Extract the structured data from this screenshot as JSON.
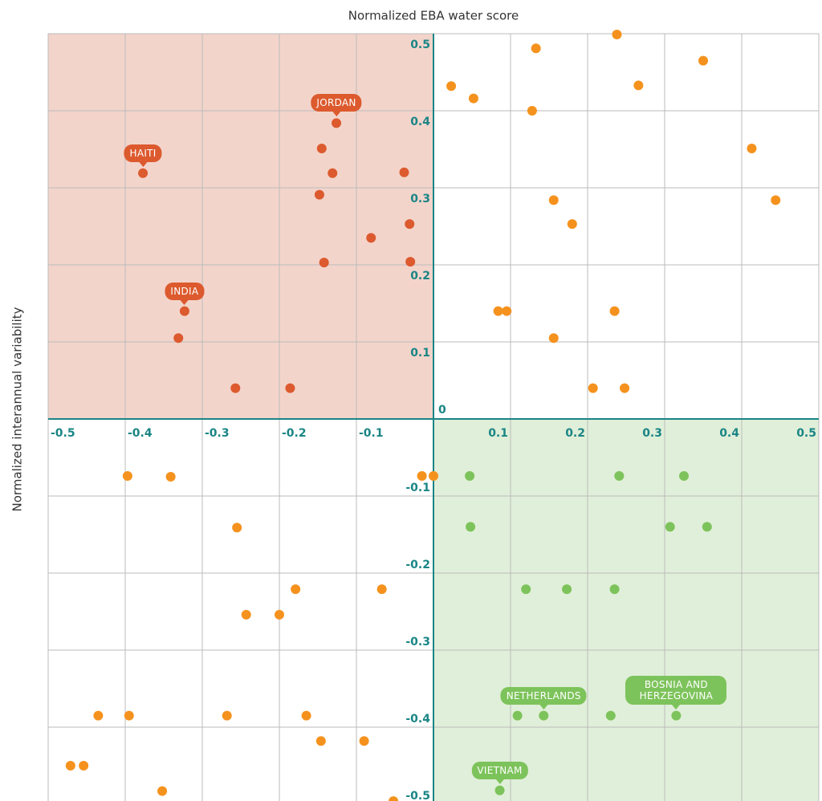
{
  "chart_data": {
    "type": "scatter",
    "title": "Normalized EBA water score",
    "ylabel": "Normalized interannual variability",
    "xlim": [
      -0.5,
      0.5
    ],
    "ylim": [
      -0.5,
      0.5
    ],
    "xticks": [
      -0.5,
      -0.4,
      -0.3,
      -0.2,
      -0.1,
      0,
      0.1,
      0.2,
      0.3,
      0.4,
      0.5
    ],
    "yticks": [
      -0.5,
      -0.4,
      -0.3,
      -0.2,
      -0.1,
      0.1,
      0.2,
      0.3,
      0.4,
      0.5
    ],
    "grid": true,
    "series": [
      {
        "color": "#dc5a2e",
        "x": [
          -0.377,
          -0.323,
          -0.331,
          -0.257,
          -0.186,
          -0.126,
          -0.145,
          -0.131,
          -0.148,
          -0.038,
          -0.031,
          -0.081,
          -0.142,
          -0.03
        ],
        "values": [
          0.319,
          0.14,
          0.105,
          0.04,
          0.04,
          0.384,
          0.351,
          0.319,
          0.291,
          0.32,
          0.253,
          0.235,
          0.203,
          0.204
        ],
        "point_labels": [
          "HAITI",
          "INDIA",
          null,
          null,
          null,
          "JORDAN",
          null,
          null,
          null,
          null,
          null,
          null,
          null,
          null
        ]
      },
      {
        "color": "#f5921e",
        "x": [
          0.238,
          0.133,
          0.35,
          0.023,
          0.052,
          0.266,
          0.128,
          0.413,
          0.156,
          0.444,
          0.18,
          0.084,
          0.095,
          0.235,
          0.156,
          0.207,
          0.248,
          -0.397,
          -0.341,
          -0.255,
          -0.015,
          0.0,
          -0.179,
          -0.067,
          -0.243,
          -0.2,
          -0.435,
          -0.395,
          -0.268,
          -0.165,
          -0.146,
          -0.09,
          -0.471,
          -0.454,
          -0.352,
          -0.052
        ],
        "values": [
          0.499,
          0.481,
          0.465,
          0.432,
          0.416,
          0.433,
          0.4,
          0.351,
          0.284,
          0.284,
          0.253,
          0.14,
          0.14,
          0.14,
          0.105,
          0.04,
          0.04,
          -0.074,
          -0.075,
          -0.141,
          -0.074,
          -0.074,
          -0.221,
          -0.221,
          -0.254,
          -0.254,
          -0.385,
          -0.385,
          -0.385,
          -0.385,
          -0.418,
          -0.418,
          -0.45,
          -0.45,
          -0.483,
          -0.496
        ]
      },
      {
        "color": "#7dc35b",
        "x": [
          0.047,
          0.241,
          0.325,
          0.048,
          0.307,
          0.355,
          0.12,
          0.173,
          0.235,
          0.109,
          0.143,
          0.23,
          0.315,
          0.086
        ],
        "values": [
          -0.074,
          -0.074,
          -0.074,
          -0.14,
          -0.14,
          -0.14,
          -0.221,
          -0.221,
          -0.221,
          -0.385,
          -0.385,
          -0.385,
          -0.385,
          -0.482
        ],
        "point_labels": [
          null,
          null,
          null,
          null,
          null,
          null,
          null,
          null,
          null,
          null,
          "NETHERLANDS",
          null,
          "BOSNIA AND HERZEGOVINA",
          "VIETNAM"
        ]
      }
    ]
  }
}
